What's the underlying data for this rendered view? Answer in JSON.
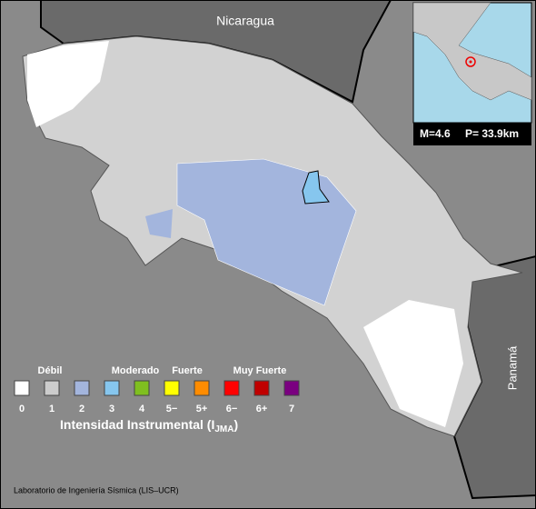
{
  "map": {
    "labels": {
      "nicaragua": "Nicaragua",
      "panama": "Panamá"
    },
    "inset": {
      "magnitude": "M=4.6",
      "depth": "P= 33.9km"
    },
    "legend": {
      "groups": [
        "Débil",
        "Moderado",
        "Fuerte",
        "Muy Fuerte"
      ],
      "items": [
        {
          "label": "0",
          "color": "#ffffff"
        },
        {
          "label": "1",
          "color": "#cccccc"
        },
        {
          "label": "2",
          "color": "#a3b5dd"
        },
        {
          "label": "3",
          "color": "#86c6ee"
        },
        {
          "label": "4",
          "color": "#7fbf1f"
        },
        {
          "label": "5−",
          "color": "#ffff00"
        },
        {
          "label": "5+",
          "color": "#ff8c00"
        },
        {
          "label": "6−",
          "color": "#ff0000"
        },
        {
          "label": "6+",
          "color": "#c00000"
        },
        {
          "label": "7",
          "color": "#7a0080"
        }
      ],
      "title": {
        "text": "Intensidad Instrumental (I",
        "subscript": "JMA",
        "close": ")"
      }
    },
    "credit": "Laboratorio de Ingeniería Sísmica (LIS–UCR)"
  }
}
